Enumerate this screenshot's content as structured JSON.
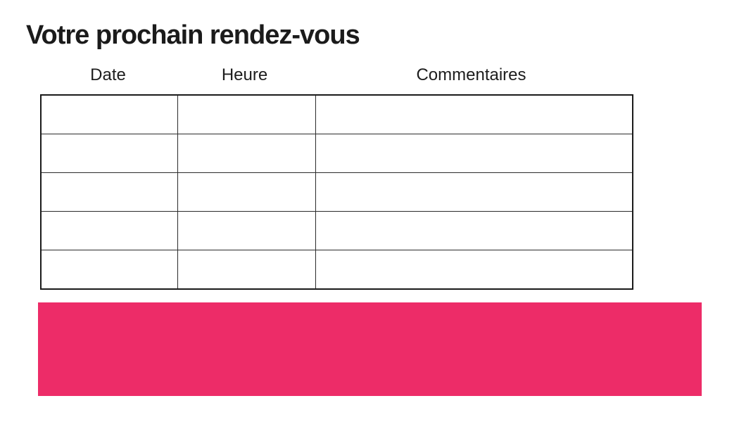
{
  "page": {
    "title": "Votre prochain rendez-vous"
  },
  "table": {
    "columns": [
      {
        "label": "Date"
      },
      {
        "label": "Heure"
      },
      {
        "label": "Commentaires"
      }
    ],
    "rows": [
      [
        "",
        "",
        ""
      ],
      [
        "",
        "",
        ""
      ],
      [
        "",
        "",
        ""
      ],
      [
        "",
        "",
        ""
      ],
      [
        "",
        "",
        ""
      ]
    ]
  },
  "colors": {
    "accent_pink": "#ED2C68",
    "title_text": "#1b1b1b",
    "table_border": "#1a1a1a"
  }
}
